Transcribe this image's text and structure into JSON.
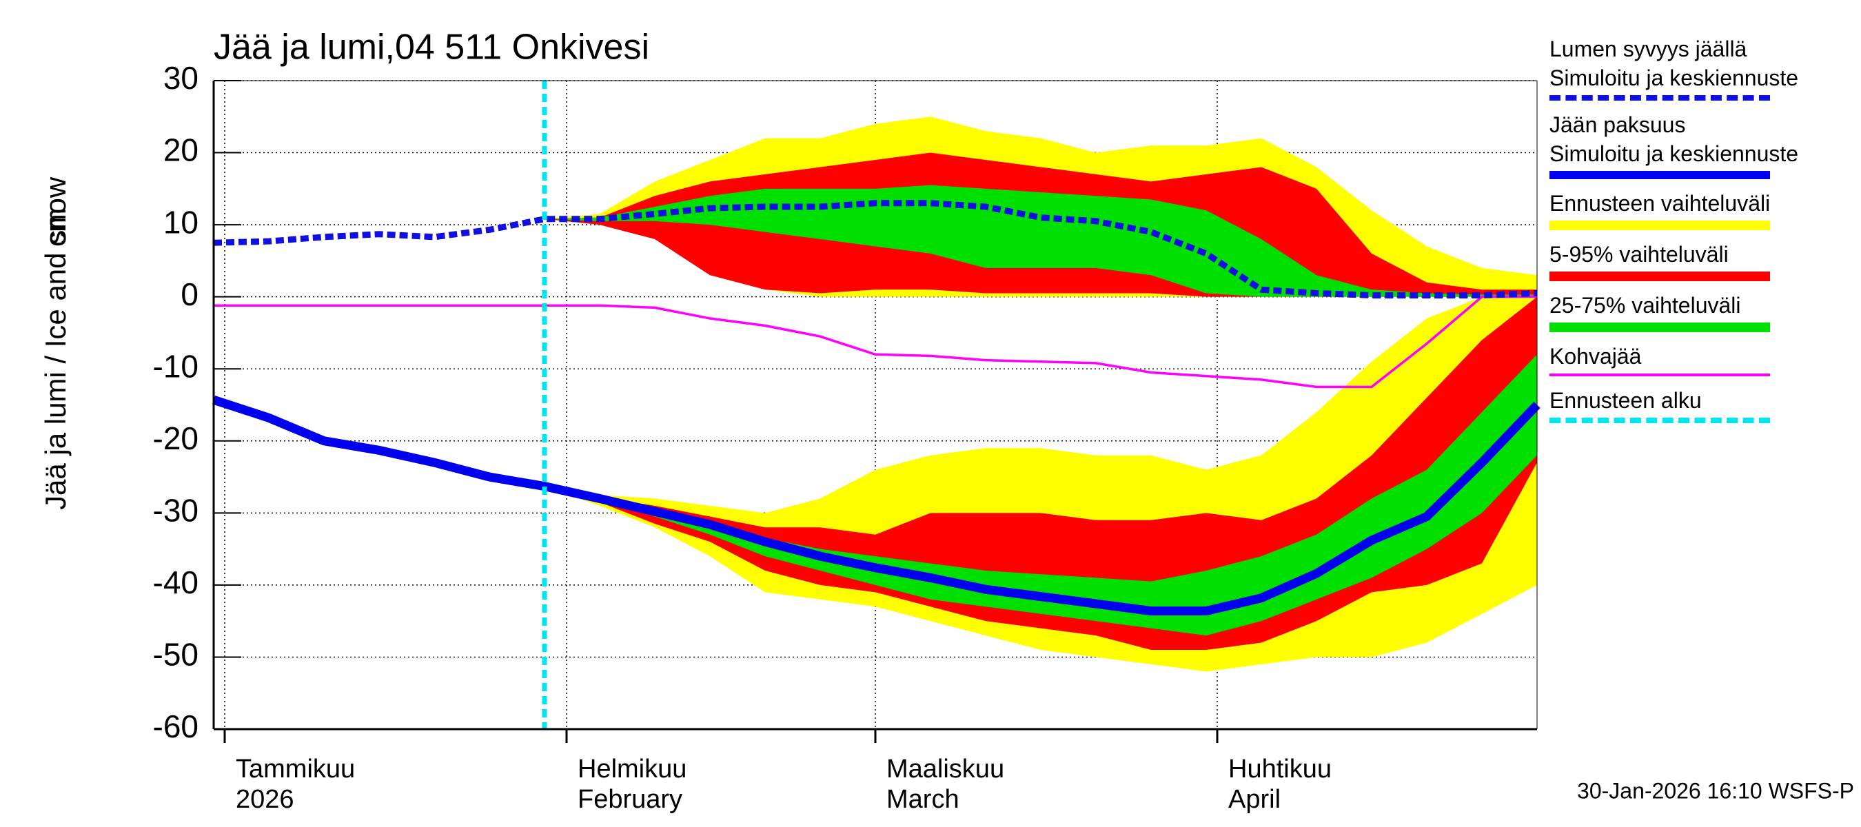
{
  "chart_data": {
    "type": "band-line",
    "title": "Jää ja lumi,04 511 Onkivesi",
    "ylabel": "Jää ja lumi / Ice and snow",
    "yunit": "cm",
    "timestamp": "30-Jan-2026 16:10 WSFS-P",
    "x": [
      -1,
      4,
      9,
      14,
      19,
      24,
      29,
      34,
      39,
      44,
      49,
      54,
      59,
      64,
      69,
      74,
      79,
      84,
      89,
      94,
      99,
      104,
      109,
      114,
      119
    ],
    "xlim": [
      -1,
      119
    ],
    "xticks": [
      {
        "value": 0,
        "label": "Tammikuu\n2026"
      },
      {
        "value": 31,
        "label": "Helmikuu\nFebruary"
      },
      {
        "value": 59,
        "label": "Maaliskuu\nMarch"
      },
      {
        "value": 90,
        "label": "Huhtikuu\nApril"
      }
    ],
    "ylim": [
      -60,
      30
    ],
    "yticks": [
      -60,
      -50,
      -40,
      -30,
      -20,
      -10,
      0,
      10,
      20,
      30
    ],
    "grid": true,
    "series": [
      {
        "name": "Lumen syvyys jäällä\nSimuloitu ja keskiennuste",
        "color": "#1010e0",
        "linestyle": "dashed",
        "values": [
          7.5,
          7.7,
          8.3,
          8.7,
          8.3,
          9.3,
          10.8,
          10.8,
          11.5,
          12.3,
          12.5,
          12.5,
          13,
          13,
          12.5,
          11,
          10.5,
          9,
          6,
          1,
          0.5,
          0.2,
          0.2,
          0.2,
          0.5
        ]
      },
      {
        "name": "Jään paksuus\nSimuloitu ja keskiennuste",
        "color": "#0000ee",
        "linestyle": "solid",
        "values": [
          -14.3,
          -16.8,
          -20,
          -21.3,
          -23,
          -25,
          -26.3,
          -28,
          -29.8,
          -31.6,
          -34,
          -36,
          -37.6,
          -39,
          -40.6,
          -41.6,
          -42.6,
          -43.6,
          -43.6,
          -41.8,
          -38.4,
          -33.8,
          -30.5,
          -23,
          -15
        ]
      },
      {
        "name": "Kohvajää",
        "color": "#ff00ff",
        "linestyle": "solid",
        "values": [
          -1.2,
          -1.2,
          -1.2,
          -1.2,
          -1.2,
          -1.2,
          -1.2,
          -1.2,
          -1.5,
          -3,
          -4,
          -5.5,
          -8,
          -8.2,
          -8.8,
          -9,
          -9.2,
          -10.5,
          -11,
          -11.5,
          -12.5,
          -12.5,
          -6.5,
          0,
          0
        ]
      }
    ],
    "bands": [
      {
        "name": "Ennusteen vaihteluväli",
        "color": "#ffff00",
        "snow_upper": [
          null,
          null,
          null,
          null,
          null,
          null,
          10.8,
          11.5,
          16,
          19,
          22,
          22,
          24,
          25,
          23,
          22,
          20,
          21,
          21,
          22,
          18,
          12,
          7,
          4,
          3
        ],
        "snow_lower": [
          null,
          null,
          null,
          null,
          null,
          null,
          10.8,
          10,
          9,
          4,
          1,
          0,
          0,
          0,
          0,
          0,
          0,
          0,
          0,
          0,
          0,
          0,
          0,
          0,
          0
        ],
        "ice_upper": [
          null,
          null,
          null,
          null,
          null,
          null,
          -26.3,
          -27.5,
          -28,
          -29,
          -30,
          -28,
          -24,
          -22,
          -21,
          -21,
          -22,
          -22,
          -24,
          -22,
          -16,
          -9,
          -3,
          0,
          0
        ],
        "ice_lower": [
          null,
          null,
          null,
          null,
          null,
          null,
          -26.3,
          -29,
          -32,
          -36,
          -41,
          -42,
          -43,
          -45,
          -47,
          -49,
          -50,
          -51,
          -52,
          -51,
          -50,
          -50,
          -48,
          -44,
          -40
        ]
      },
      {
        "name": "5-95% vaihteluväli",
        "color": "#ff0000",
        "snow_upper": [
          null,
          null,
          null,
          null,
          null,
          null,
          10.8,
          11,
          14,
          16,
          17,
          18,
          19,
          20,
          19,
          18,
          17,
          16,
          17,
          18,
          15,
          6,
          2,
          1,
          1
        ],
        "snow_lower": [
          null,
          null,
          null,
          null,
          null,
          null,
          10.8,
          10,
          8,
          3,
          1,
          0.5,
          1,
          1,
          0.5,
          0.5,
          0.5,
          0.5,
          0,
          0,
          0,
          0,
          0,
          0,
          0
        ],
        "ice_upper": [
          null,
          null,
          null,
          null,
          null,
          null,
          -26.3,
          -27.8,
          -29,
          -30.5,
          -32,
          -32,
          -33,
          -30,
          -30,
          -30,
          -31,
          -31,
          -30,
          -31,
          -28,
          -22,
          -14,
          -6,
          0
        ],
        "ice_lower": [
          null,
          null,
          null,
          null,
          null,
          null,
          -26.3,
          -28.5,
          -31.5,
          -34,
          -38,
          -40,
          -41,
          -43,
          -45,
          -46,
          -47,
          -49,
          -49,
          -48,
          -45,
          -41,
          -40,
          -37,
          -23
        ]
      },
      {
        "name": "25-75% vaihteluväli",
        "color": "#00e000",
        "snow_upper": [
          null,
          null,
          null,
          null,
          null,
          null,
          10.8,
          11,
          12.5,
          14,
          15,
          15,
          15,
          15.5,
          15,
          14.5,
          14,
          13.5,
          12,
          8,
          3,
          1,
          0.5,
          0.3,
          0.3
        ],
        "snow_lower": [
          null,
          null,
          null,
          null,
          null,
          null,
          10.8,
          10.5,
          10.5,
          10,
          9,
          8,
          7,
          6,
          4,
          4,
          4,
          3,
          0.5,
          0,
          0,
          0,
          0,
          0,
          0
        ],
        "ice_upper": [
          null,
          null,
          null,
          null,
          null,
          null,
          -26.3,
          -28,
          -30,
          -31.5,
          -33.5,
          -35,
          -36,
          -37,
          -38,
          -38.5,
          -39,
          -39.5,
          -38,
          -36,
          -33,
          -28,
          -24,
          -16,
          -8
        ],
        "ice_lower": [
          null,
          null,
          null,
          null,
          null,
          null,
          -26.3,
          -28.3,
          -30.5,
          -33,
          -36,
          -38,
          -40,
          -42,
          -43,
          -44,
          -45,
          -46,
          -47,
          -45,
          -42,
          -39,
          -35,
          -30,
          -22
        ]
      }
    ],
    "forecast_start": {
      "name": "Ennusteen alku",
      "color": "#00e5ee",
      "x": 29
    }
  }
}
